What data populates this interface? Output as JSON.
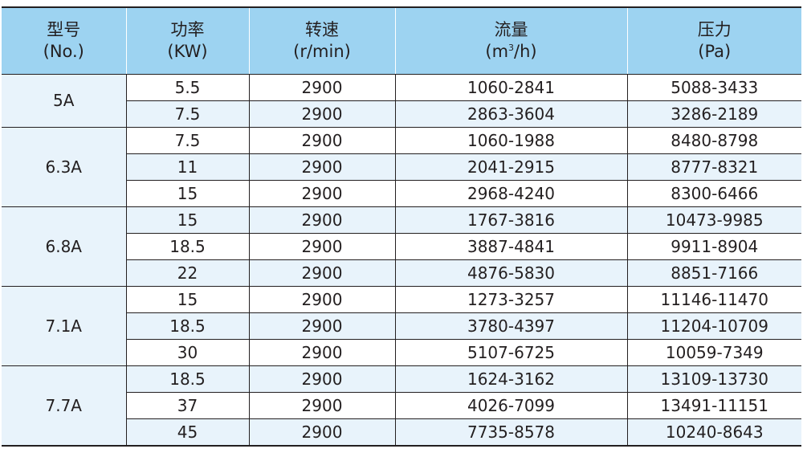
{
  "table": {
    "headers": [
      {
        "cn": "型号",
        "en": "(No.)"
      },
      {
        "cn": "功率",
        "en": "(KW)"
      },
      {
        "cn": "转速",
        "en": "(r/min)"
      },
      {
        "cn": "流量",
        "en_pre": "(m",
        "en_sup": "3",
        "en_post": "/h)"
      },
      {
        "cn": "压力",
        "en": "(Pa)"
      }
    ],
    "groups": [
      {
        "model": "5A",
        "rows": [
          {
            "power": "5.5",
            "speed": "2900",
            "flow": "1060-2841",
            "pressure": "5088-3433"
          },
          {
            "power": "7.5",
            "speed": "2900",
            "flow": "2863-3604",
            "pressure": "3286-2189"
          }
        ]
      },
      {
        "model": "6.3A",
        "rows": [
          {
            "power": "7.5",
            "speed": "2900",
            "flow": "1060-1988",
            "pressure": "8480-8798"
          },
          {
            "power": "11",
            "speed": "2900",
            "flow": "2041-2915",
            "pressure": "8777-8321"
          },
          {
            "power": "15",
            "speed": "2900",
            "flow": "2968-4240",
            "pressure": "8300-6466"
          }
        ]
      },
      {
        "model": "6.8A",
        "rows": [
          {
            "power": "15",
            "speed": "2900",
            "flow": "1767-3816",
            "pressure": "10473-9985"
          },
          {
            "power": "18.5",
            "speed": "2900",
            "flow": "3887-4841",
            "pressure": "9911-8904"
          },
          {
            "power": "22",
            "speed": "2900",
            "flow": "4876-5830",
            "pressure": "8851-7166"
          }
        ]
      },
      {
        "model": "7.1A",
        "rows": [
          {
            "power": "15",
            "speed": "2900",
            "flow": "1273-3257",
            "pressure": "11146-11470"
          },
          {
            "power": "18.5",
            "speed": "2900",
            "flow": "3780-4397",
            "pressure": "11204-10709"
          },
          {
            "power": "30",
            "speed": "2900",
            "flow": "5107-6725",
            "pressure": "10059-7349"
          }
        ]
      },
      {
        "model": "7.7A",
        "rows": [
          {
            "power": "18.5",
            "speed": "2900",
            "flow": "1624-3162",
            "pressure": "13109-13730"
          },
          {
            "power": "37",
            "speed": "2900",
            "flow": "4026-7099",
            "pressure": "13491-11151"
          },
          {
            "power": "45",
            "speed": "2900",
            "flow": "7735-8578",
            "pressure": "10240-8643"
          }
        ]
      }
    ]
  },
  "colors": {
    "header_bg": "#9dd3f1",
    "row_shade": "#e8f3fb",
    "rule": "#231f20"
  }
}
